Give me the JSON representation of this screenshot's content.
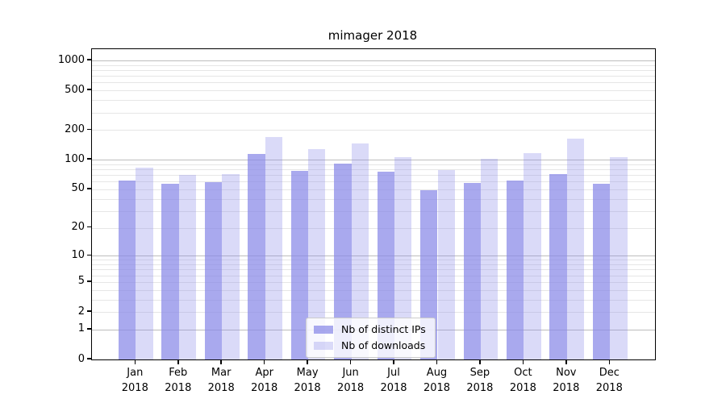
{
  "title": "mimager 2018",
  "chart_data": {
    "type": "bar",
    "title": "mimager 2018",
    "categories": [
      "Jan 2018",
      "Feb 2018",
      "Mar 2018",
      "Apr 2018",
      "May 2018",
      "Jun 2018",
      "Jul 2018",
      "Aug 2018",
      "Sep 2018",
      "Oct 2018",
      "Nov 2018",
      "Dec 2018"
    ],
    "x_tick_line1": [
      "Jan",
      "Feb",
      "Mar",
      "Apr",
      "May",
      "Jun",
      "Jul",
      "Aug",
      "Sep",
      "Oct",
      "Nov",
      "Dec"
    ],
    "x_tick_line2": [
      "2018",
      "2018",
      "2018",
      "2018",
      "2018",
      "2018",
      "2018",
      "2018",
      "2018",
      "2018",
      "2018",
      "2018"
    ],
    "series": [
      {
        "name": "Nb of distinct IPs",
        "color": "#8888e8",
        "alpha": 0.72,
        "values": [
          62,
          57,
          59,
          114,
          77,
          92,
          75,
          49,
          58,
          61,
          71,
          57
        ]
      },
      {
        "name": "Nb of downloads",
        "color": "#8888e8",
        "alpha": 0.31,
        "values": [
          83,
          70,
          72,
          170,
          127,
          145,
          106,
          78,
          103,
          116,
          163,
          106
        ]
      }
    ],
    "xlabel": "",
    "ylabel": "",
    "yscale": "symlog",
    "ylim": [
      0,
      1300
    ],
    "y_ticks": [
      1000,
      500,
      200,
      100,
      50,
      20,
      10,
      5,
      2,
      1,
      0
    ],
    "y_major_gridlines": [
      1,
      10,
      100,
      1000
    ],
    "y_minor_gridlines": [
      2,
      3,
      4,
      5,
      6,
      7,
      8,
      9,
      20,
      30,
      40,
      50,
      60,
      70,
      80,
      90,
      200,
      300,
      400,
      500,
      600,
      700,
      800,
      900
    ],
    "grid": true,
    "legend_position": "lower-center"
  }
}
